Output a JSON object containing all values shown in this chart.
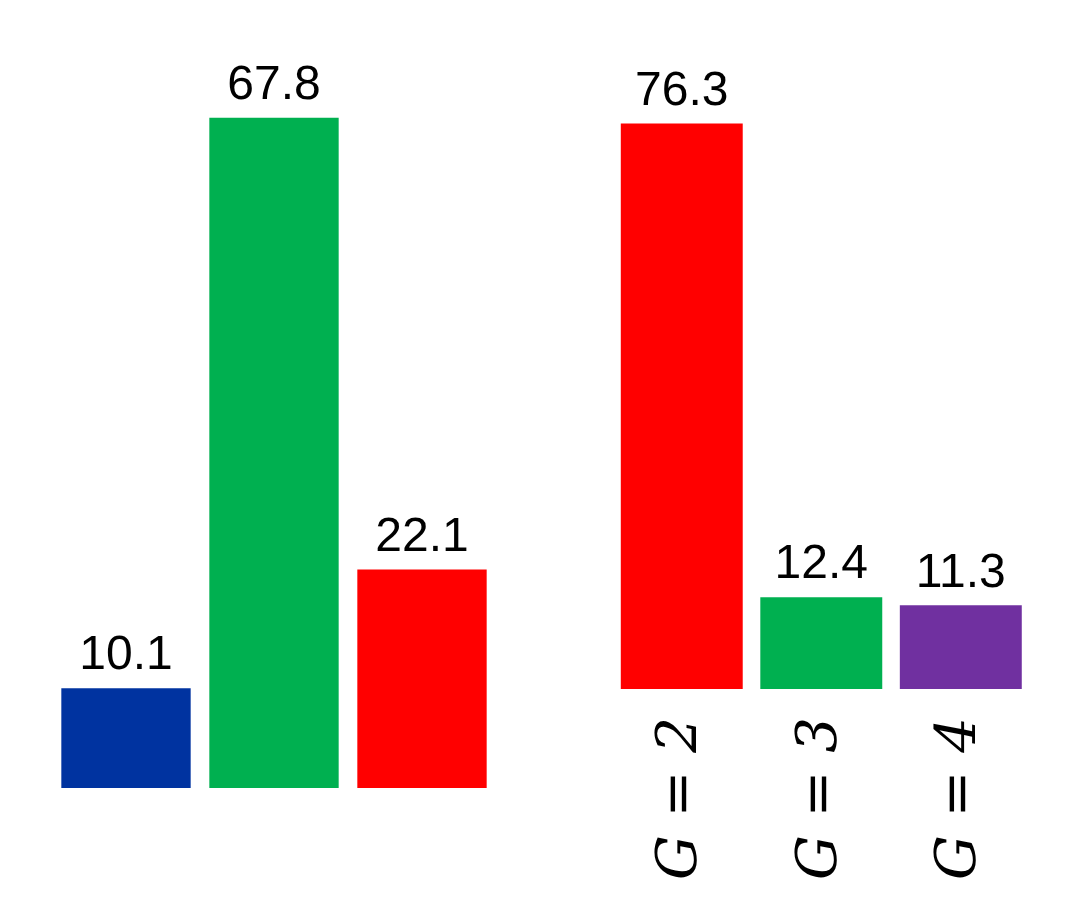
{
  "chart_data": [
    {
      "type": "bar",
      "categories": [
        null,
        null,
        null
      ],
      "values": [
        10.1,
        67.8,
        22.1
      ],
      "colors": [
        "#0033a0",
        "#00b050",
        "#ff0000"
      ],
      "data_labels": true,
      "grid": false,
      "legend": false
    },
    {
      "type": "bar",
      "categories": [
        "G = 2",
        "G = 3",
        "G = 4"
      ],
      "values": [
        76.3,
        12.4,
        11.3
      ],
      "colors": [
        "#ff0000",
        "#00b050",
        "#7030a0"
      ],
      "data_labels": true,
      "grid": false,
      "legend": false
    }
  ]
}
